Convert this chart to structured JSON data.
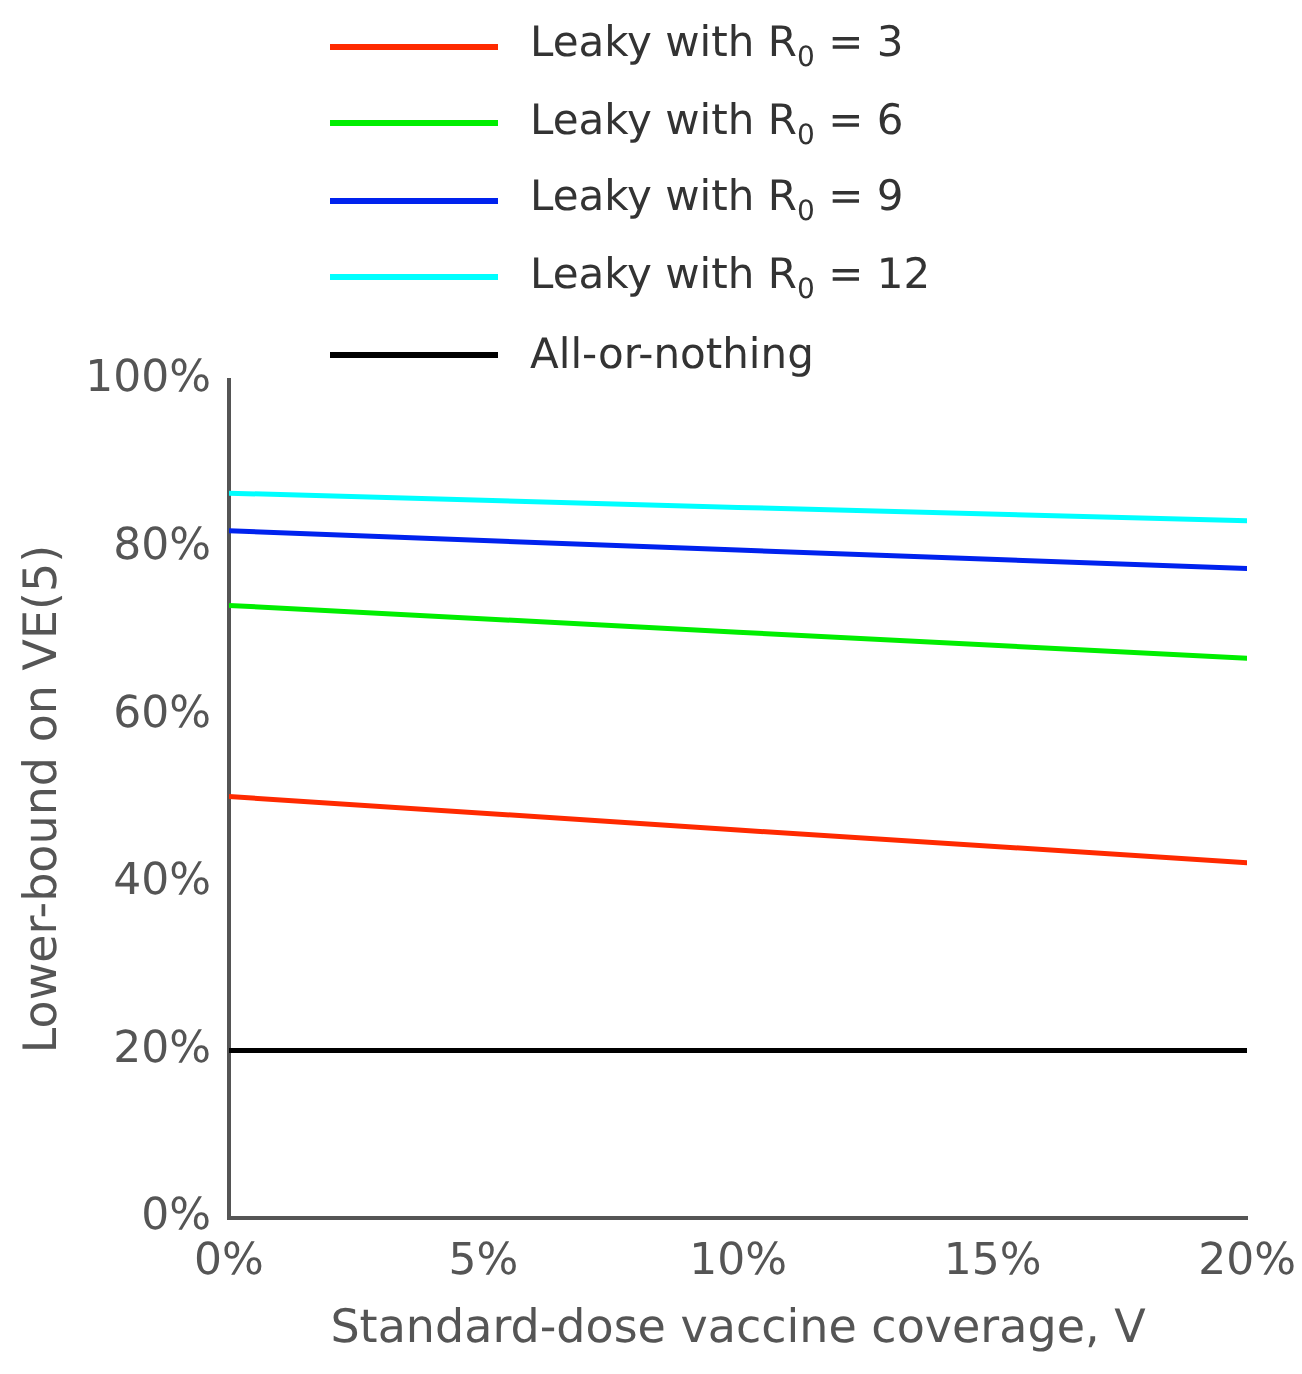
{
  "chart_data": {
    "type": "line",
    "xlabel": "Standard-dose vaccine coverage, V",
    "ylabel": "Lower-bound on VE(5)",
    "x": [
      0,
      10,
      20
    ],
    "series": [
      {
        "name": "Leaky with R$_{0}$ = 3",
        "color": "#ff2a00",
        "values": [
          50.3,
          46.3,
          42.4
        ]
      },
      {
        "name": "Leaky with R$_{0}$ = 6",
        "color": "#00ee00",
        "values": [
          73.1,
          69.9,
          66.8
        ]
      },
      {
        "name": "Leaky with R$_{0}$ = 9",
        "color": "#0022ee",
        "values": [
          82.0,
          79.7,
          77.5
        ]
      },
      {
        "name": "Leaky with R$_{0}$ = 12",
        "color": "#00ffff",
        "values": [
          86.5,
          84.8,
          83.2
        ]
      },
      {
        "name": "All-or-nothing",
        "color": "#000000",
        "values": [
          20,
          20,
          20
        ]
      }
    ],
    "xlim": [
      0,
      20
    ],
    "xticks": [
      {
        "value": 0,
        "label": "0%"
      },
      {
        "value": 5,
        "label": "5%"
      },
      {
        "value": 10,
        "label": "10%"
      },
      {
        "value": 15,
        "label": "15%"
      },
      {
        "value": 20,
        "label": "20%"
      }
    ],
    "ylim": [
      0,
      100
    ],
    "yticks": [
      {
        "value": 0,
        "label": "0%"
      },
      {
        "value": 20,
        "label": "20%"
      },
      {
        "value": 40,
        "label": "40%"
      },
      {
        "value": 60,
        "label": "60%"
      },
      {
        "value": 80,
        "label": "80%"
      },
      {
        "value": 100,
        "label": "100%"
      }
    ],
    "legend": "top",
    "grid": false,
    "marker": "none",
    "line_style": "solid"
  }
}
